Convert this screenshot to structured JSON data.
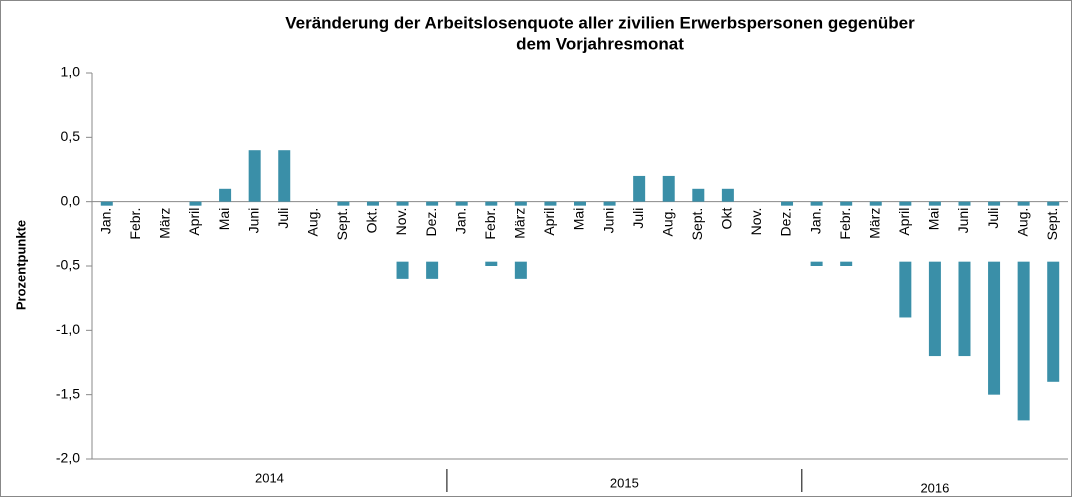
{
  "chart_data": {
    "type": "bar",
    "title": [
      "Veränderung der Arbeitslosenquote aller zivilien Erwerbspersonen gegenüber",
      "dem Vorjahresmonat"
    ],
    "y_label": "Prozentpunkte",
    "categories": [
      "Jan.",
      "Febr.",
      "März",
      "April",
      "Mai",
      "Juni",
      "Juli",
      "Aug.",
      "Sept.",
      "Okt.",
      "Nov.",
      "Dez.",
      "Jan.",
      "Febr.",
      "März",
      "April",
      "Mai",
      "Juni",
      "Juli",
      "Aug.",
      "Sept.",
      "Okt",
      "Nov.",
      "Dez.",
      "Jan.",
      "Febr.",
      "März",
      "April",
      "Mai",
      "Juni",
      "Juli",
      "Aug.",
      "Sept."
    ],
    "groups": [
      "2014",
      "2015",
      "2016"
    ],
    "values": [
      -0.1,
      0,
      0,
      -0.1,
      0.1,
      0.4,
      0.4,
      0,
      -0.1,
      -0.1,
      -0.6,
      -0.6,
      -0.4,
      -0.5,
      -0.6,
      -0.1,
      -0.1,
      -0.1,
      0.2,
      0.2,
      0.1,
      0.1,
      0,
      -0.1,
      -0.5,
      -0.5,
      -0.1,
      -0.9,
      -1.2,
      -1.2,
      -1.5,
      -1.7,
      -1.4
    ],
    "color": "#3a8fa8",
    "ylim": [
      -2,
      1
    ],
    "yticks": [
      {
        "value": -2,
        "label": "-2,0"
      },
      {
        "value": -1.5,
        "label": "-1,5"
      },
      {
        "value": -1,
        "label": "-1,0"
      },
      {
        "value": -0.5,
        "label": "-0,5"
      },
      {
        "value": 0,
        "label": "0,0"
      },
      {
        "value": 0.5,
        "label": "0,5"
      },
      {
        "value": 1,
        "label": "1,0"
      }
    ]
  }
}
